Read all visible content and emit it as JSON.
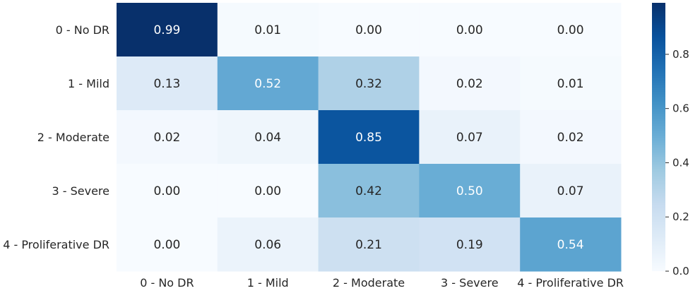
{
  "chart_data": {
    "type": "heatmap",
    "title": "",
    "xlabel": "",
    "ylabel": "",
    "x_categories": [
      "0 - No DR",
      "1 - Mild",
      "2 - Moderate",
      "3 - Severe",
      "4 - Proliferative DR"
    ],
    "y_categories": [
      "0 - No DR",
      "1 - Mild",
      "2 - Moderate",
      "3 - Severe",
      "4 - Proliferative DR"
    ],
    "values": [
      [
        0.99,
        0.01,
        0.0,
        0.0,
        0.0
      ],
      [
        0.13,
        0.52,
        0.32,
        0.02,
        0.01
      ],
      [
        0.02,
        0.04,
        0.85,
        0.07,
        0.02
      ],
      [
        0.0,
        0.0,
        0.42,
        0.5,
        0.07
      ],
      [
        0.0,
        0.06,
        0.21,
        0.19,
        0.54
      ]
    ],
    "value_format": "0.00",
    "colormap": "Blues",
    "colorbar": {
      "range": [
        0.0,
        0.99
      ],
      "ticks": [
        "0.0",
        "0.2",
        "0.4",
        "0.6",
        "0.8"
      ]
    }
  }
}
